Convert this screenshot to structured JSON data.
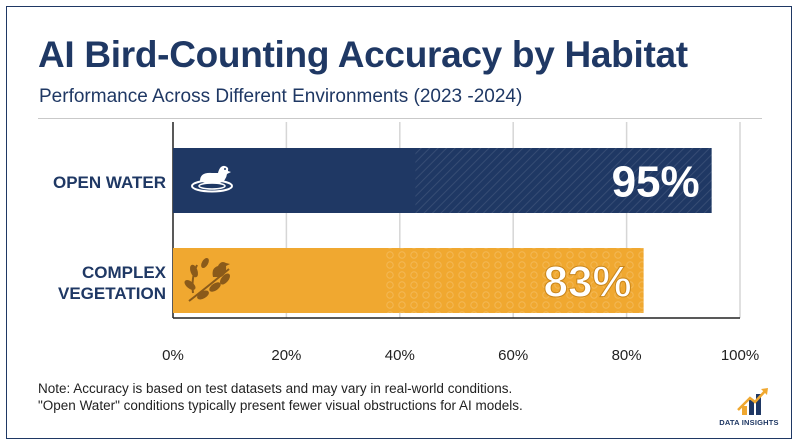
{
  "title": "AI Bird-Counting Accuracy by Habitat",
  "subtitle": "Performance Across Different Environments (2023 -2024)",
  "note": {
    "line1": "Note: Accuracy is based on test datasets and may vary in real-world conditions.",
    "line2": "\"Open Water\" conditions typically present fewer visual obstructions for AI models."
  },
  "logo": {
    "text": "DATA INSIGHTS",
    "icon": "bar-chart-arrow-icon"
  },
  "categories": [
    {
      "label_line1": "OPEN WATER",
      "label_line2": "",
      "icon": "duck-on-water-icon"
    },
    {
      "label_line1": "COMPLEX",
      "label_line2": "VEGETATION",
      "icon": "bird-in-branches-icon"
    }
  ],
  "colors": {
    "open_water": "#1f3864",
    "complex_vegetation": "#f0a830",
    "title": "#1f3864"
  },
  "chart_data": {
    "type": "bar",
    "orientation": "horizontal",
    "title": "AI Bird-Counting Accuracy by Habitat",
    "subtitle": "Performance Across Different Environments (2023 -2024)",
    "categories": [
      "OPEN WATER",
      "COMPLEX VEGETATION"
    ],
    "values": [
      95,
      83
    ],
    "value_labels": [
      "95%",
      "83%"
    ],
    "xlim": [
      0,
      100
    ],
    "x_ticks": [
      "0%",
      "20%",
      "40%",
      "60%",
      "80%",
      "100%"
    ],
    "x_tick_values": [
      0,
      20,
      40,
      60,
      80,
      100
    ],
    "grid": true,
    "legend": "none"
  }
}
